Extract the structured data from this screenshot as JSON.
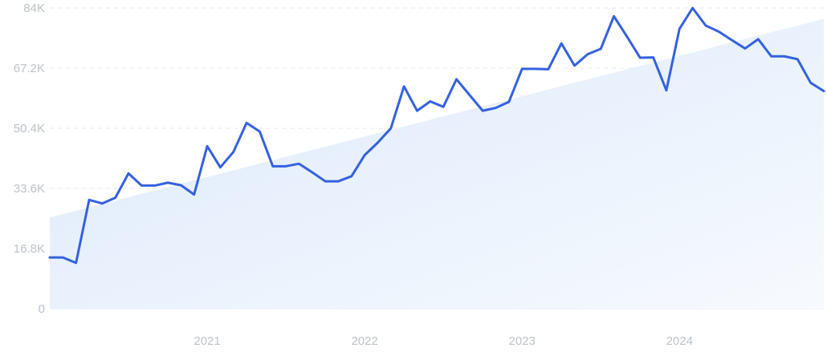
{
  "chart_data": {
    "type": "line",
    "title": "",
    "xlabel": "",
    "ylabel": "",
    "ylim": [
      0,
      84000
    ],
    "y_ticks": [
      {
        "value": 0,
        "label": "0"
      },
      {
        "value": 16800,
        "label": "16.8K"
      },
      {
        "value": 33600,
        "label": "33.6K"
      },
      {
        "value": 50400,
        "label": "50.4K"
      },
      {
        "value": 67200,
        "label": "67.2K"
      },
      {
        "value": 84000,
        "label": "84K"
      }
    ],
    "x_ticks": [
      {
        "value": "2021-01",
        "label": "2021"
      },
      {
        "value": "2022-01",
        "label": "2022"
      },
      {
        "value": "2023-01",
        "label": "2023"
      },
      {
        "value": "2024-01",
        "label": "2024"
      }
    ],
    "xlim": [
      "2020-01",
      "2024-12"
    ],
    "grid": true,
    "colors": {
      "line": "#3561e0",
      "trend_fill_start": "#dbe9fb",
      "trend_fill_end": "#f7fafe"
    },
    "series": [
      {
        "kind": "line",
        "x": [
          "2020-01",
          "2020-02",
          "2020-03",
          "2020-04",
          "2020-05",
          "2020-06",
          "2020-07",
          "2020-08",
          "2020-09",
          "2020-10",
          "2020-11",
          "2020-12",
          "2021-01",
          "2021-02",
          "2021-03",
          "2021-04",
          "2021-05",
          "2021-06",
          "2021-07",
          "2021-08",
          "2021-09",
          "2021-10",
          "2021-11",
          "2021-12",
          "2022-01",
          "2022-02",
          "2022-03",
          "2022-04",
          "2022-05",
          "2022-06",
          "2022-07",
          "2022-08",
          "2022-09",
          "2022-10",
          "2022-11",
          "2022-12",
          "2023-01",
          "2023-02",
          "2023-03",
          "2023-04",
          "2023-05",
          "2023-06",
          "2023-07",
          "2023-08",
          "2023-09",
          "2023-10",
          "2023-11",
          "2023-12",
          "2024-01",
          "2024-02",
          "2024-03",
          "2024-04",
          "2024-05",
          "2024-06",
          "2024-07",
          "2024-08",
          "2024-09",
          "2024-10",
          "2024-11",
          "2024-12"
        ],
        "values": [
          14300,
          14300,
          12800,
          30400,
          29400,
          31000,
          37800,
          34400,
          34400,
          35200,
          34500,
          31900,
          45400,
          39500,
          43800,
          51900,
          49500,
          39800,
          39800,
          40500,
          38100,
          35600,
          35600,
          37000,
          42900,
          46400,
          50400,
          62100,
          55300,
          57900,
          56400,
          64100,
          59700,
          55300,
          56100,
          57800,
          67000,
          67000,
          66900,
          74100,
          67900,
          71100,
          72600,
          81700,
          76000,
          70100,
          70200,
          61000,
          78200,
          84000,
          79100,
          77400,
          75000,
          72700,
          75300,
          70500,
          70500,
          69700,
          63100,
          60800
        ]
      },
      {
        "kind": "trend-area",
        "x": [
          "2020-01",
          "2024-12"
        ],
        "values": [
          25500,
          81000
        ]
      }
    ]
  }
}
